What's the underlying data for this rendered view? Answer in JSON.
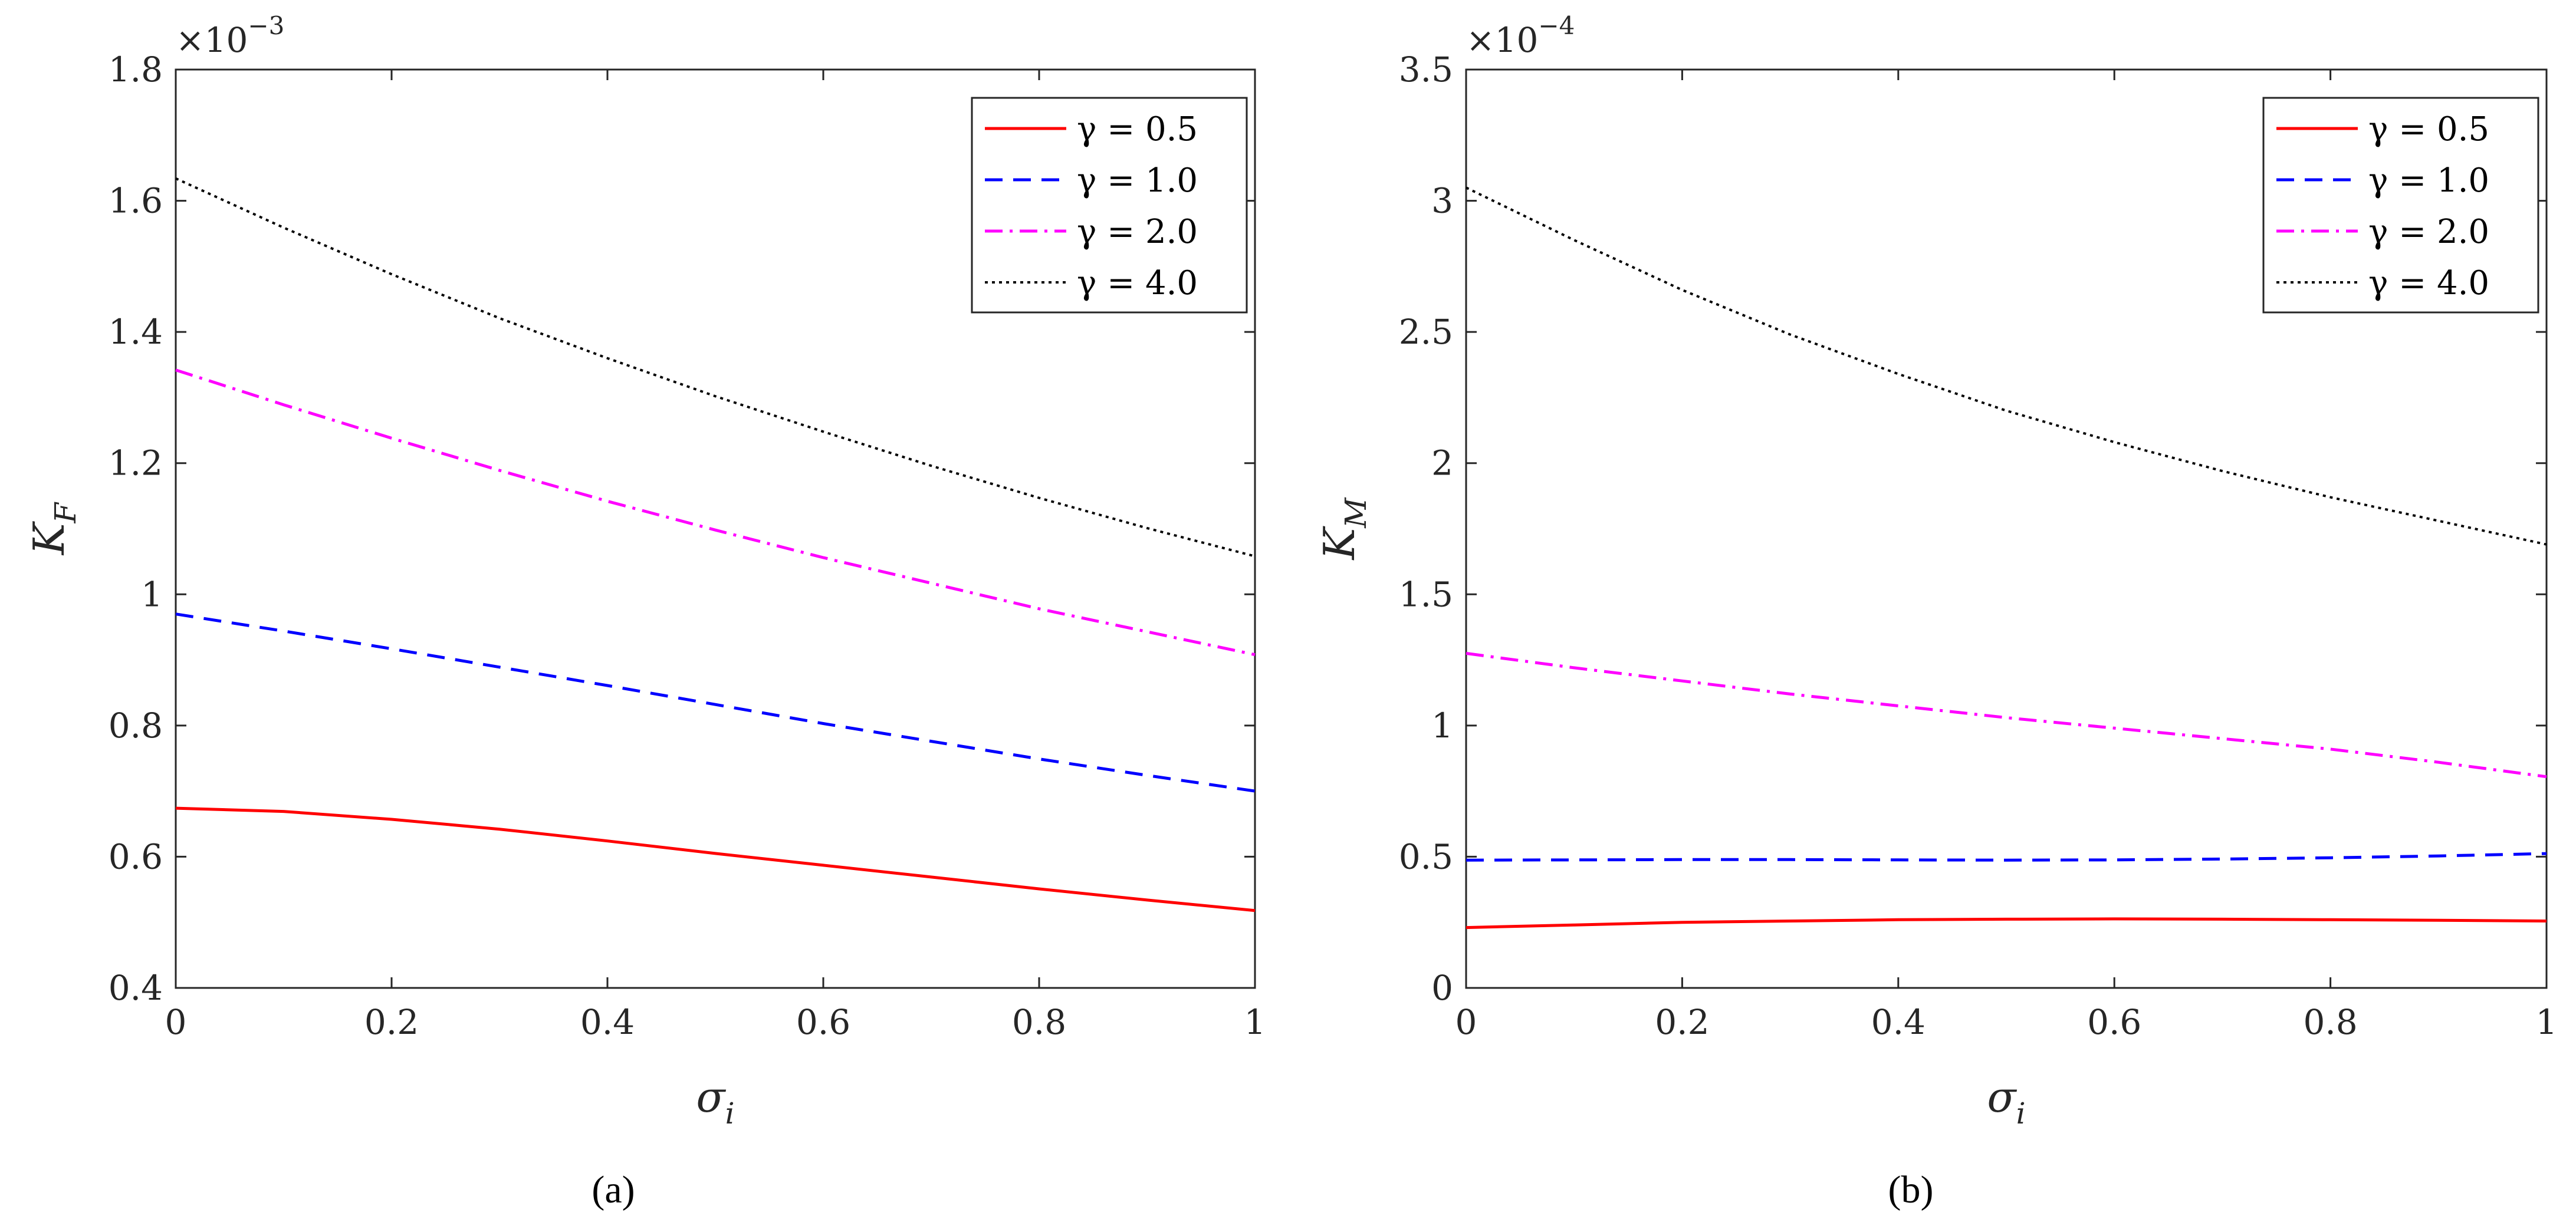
{
  "chart_data": [
    {
      "type": "line",
      "panel_label": "a",
      "xlabel_base": "σ",
      "xlabel_sub": "i",
      "ylabel_base": "K",
      "ylabel_sub": "F",
      "multiplier_base": "×10",
      "multiplier_exp": "−3",
      "xlim": [
        0,
        1
      ],
      "ylim": [
        0.4,
        1.8
      ],
      "xticks": [
        0,
        0.2,
        0.4,
        0.6,
        0.8,
        1
      ],
      "xtick_labels": [
        "0",
        "0.2",
        "0.4",
        "0.6",
        "0.8",
        "1"
      ],
      "yticks": [
        0.4,
        0.6,
        0.8,
        1.0,
        1.2,
        1.4,
        1.6,
        1.8
      ],
      "ytick_labels": [
        "0.4",
        "0.6",
        "0.8",
        "1",
        "1.2",
        "1.4",
        "1.6",
        "1.8"
      ],
      "x": [
        0,
        0.1,
        0.2,
        0.3,
        0.4,
        0.5,
        0.6,
        0.7,
        0.8,
        0.9,
        1.0
      ],
      "series": [
        {
          "name": "γ = 0.5",
          "color": "#ff0000",
          "dash": "solid",
          "values": [
            0.674,
            0.669,
            0.657,
            0.642,
            0.624,
            0.605,
            0.587,
            0.569,
            0.551,
            0.534,
            0.518
          ]
        },
        {
          "name": "γ = 1.0",
          "color": "#0000ff",
          "dash": "dashed",
          "values": [
            0.97,
            0.944,
            0.917,
            0.889,
            0.861,
            0.832,
            0.803,
            0.776,
            0.749,
            0.724,
            0.7
          ]
        },
        {
          "name": "γ = 2.0",
          "color": "#ff00ff",
          "dash": "dashdot",
          "values": [
            1.342,
            1.289,
            1.238,
            1.189,
            1.142,
            1.098,
            1.056,
            1.017,
            0.978,
            0.943,
            0.908
          ]
        },
        {
          "name": "γ = 4.0",
          "color": "#000000",
          "dash": "dotted",
          "values": [
            1.634,
            1.559,
            1.488,
            1.421,
            1.36,
            1.302,
            1.248,
            1.196,
            1.147,
            1.101,
            1.058
          ]
        }
      ],
      "legend_position": "top-right"
    },
    {
      "type": "line",
      "panel_label": "b",
      "xlabel_base": "σ",
      "xlabel_sub": "i",
      "ylabel_base": "K",
      "ylabel_sub": "M",
      "multiplier_base": "×10",
      "multiplier_exp": "−4",
      "xlim": [
        0,
        1
      ],
      "ylim": [
        0,
        3.5
      ],
      "xticks": [
        0,
        0.2,
        0.4,
        0.6,
        0.8,
        1
      ],
      "xtick_labels": [
        "0",
        "0.2",
        "0.4",
        "0.6",
        "0.8",
        "1"
      ],
      "yticks": [
        0,
        0.5,
        1.0,
        1.5,
        2.0,
        2.5,
        3.0,
        3.5
      ],
      "ytick_labels": [
        "0",
        "0.5",
        "1",
        "1.5",
        "2",
        "2.5",
        "3",
        "3.5"
      ],
      "x": [
        0,
        0.1,
        0.2,
        0.3,
        0.4,
        0.5,
        0.6,
        0.7,
        0.8,
        0.9,
        1.0
      ],
      "series": [
        {
          "name": "γ = 0.5",
          "color": "#ff0000",
          "dash": "solid",
          "values": [
            0.23,
            0.24,
            0.25,
            0.255,
            0.26,
            0.262,
            0.263,
            0.262,
            0.26,
            0.258,
            0.255
          ]
        },
        {
          "name": "γ = 1.0",
          "color": "#0000ff",
          "dash": "dashed",
          "values": [
            0.487,
            0.488,
            0.489,
            0.489,
            0.488,
            0.487,
            0.488,
            0.491,
            0.496,
            0.503,
            0.512
          ]
        },
        {
          "name": "γ = 2.0",
          "color": "#ff00ff",
          "dash": "dashdot",
          "values": [
            1.275,
            1.22,
            1.17,
            1.12,
            1.075,
            1.03,
            0.99,
            0.95,
            0.91,
            0.86,
            0.805
          ]
        },
        {
          "name": "γ = 4.0",
          "color": "#000000",
          "dash": "dotted",
          "values": [
            3.05,
            2.85,
            2.66,
            2.49,
            2.34,
            2.2,
            2.08,
            1.97,
            1.87,
            1.78,
            1.69
          ]
        }
      ],
      "legend_position": "top-right"
    }
  ],
  "captions": [
    "(a)",
    "(b)"
  ]
}
